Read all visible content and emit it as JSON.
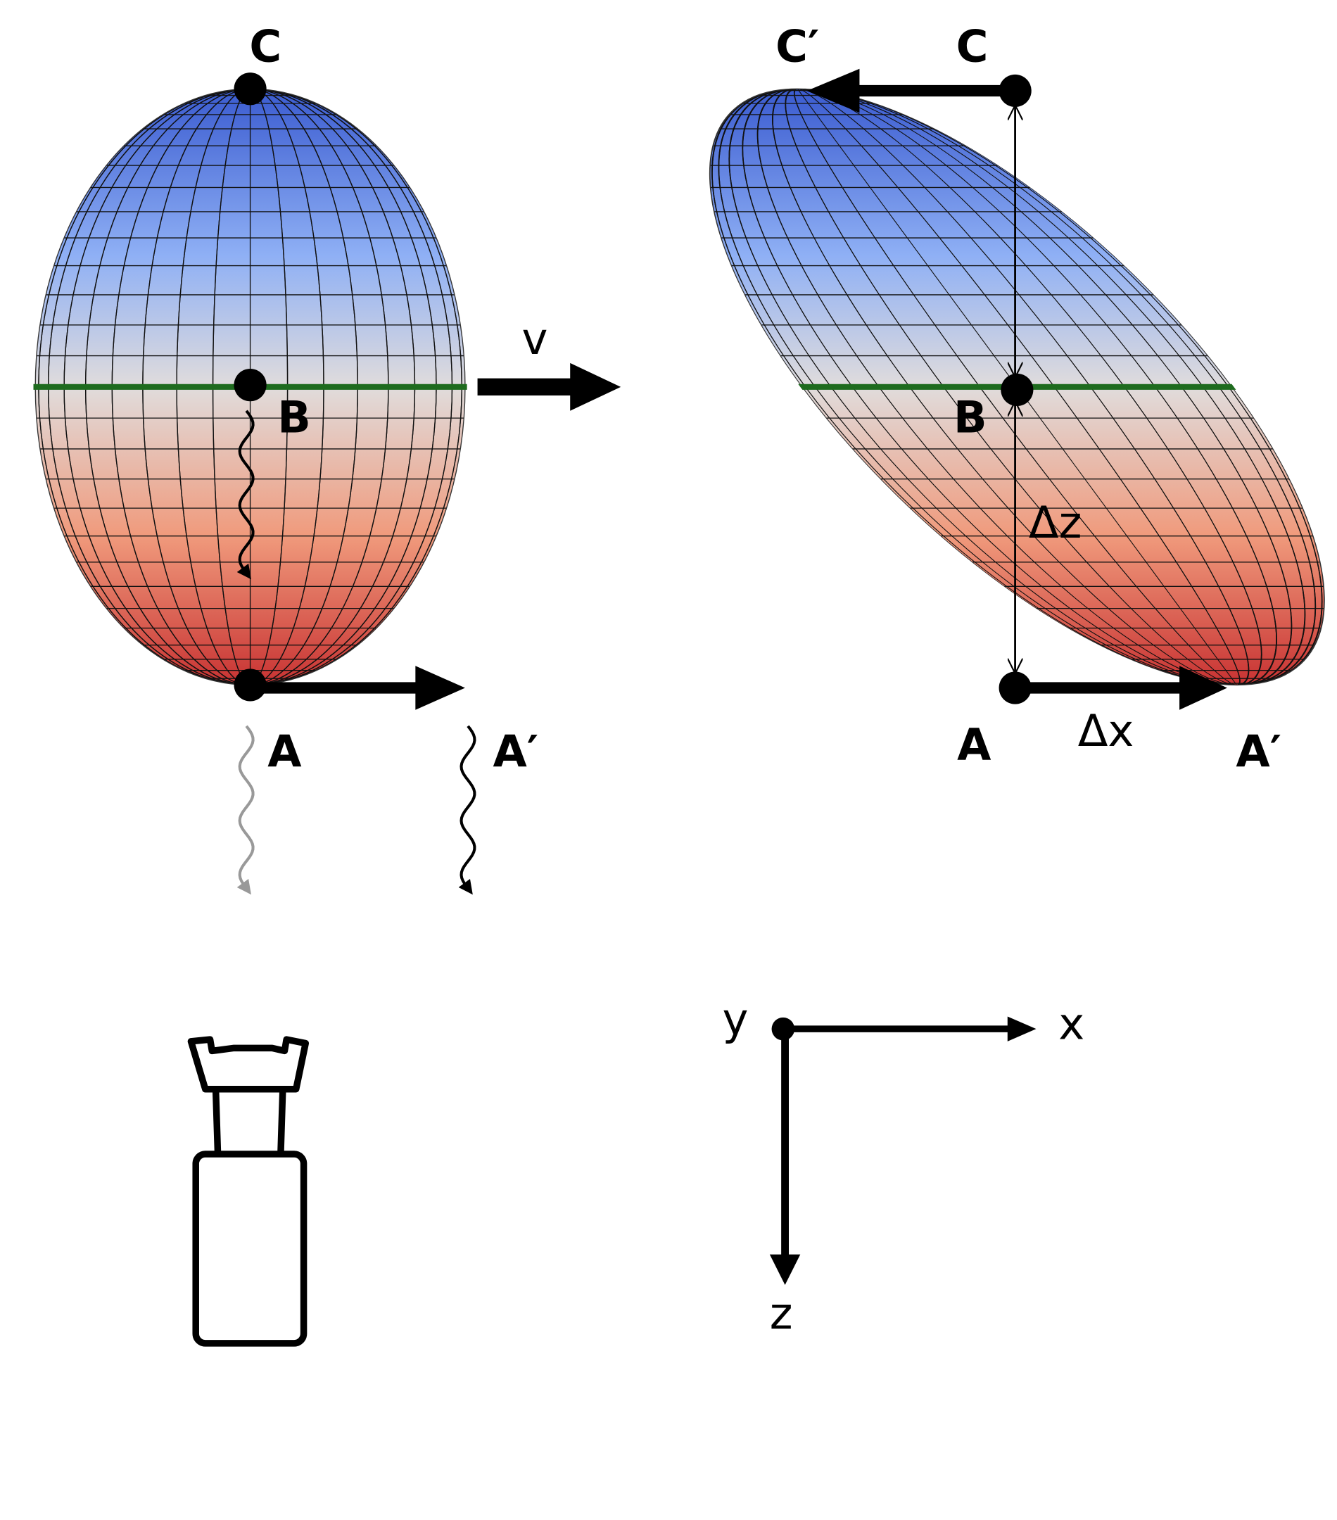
{
  "left": {
    "labels": {
      "c": "C",
      "b": "B",
      "a": "A",
      "a_prime": "A′",
      "v": "v"
    }
  },
  "right": {
    "labels": {
      "c_prime": "C′",
      "c": "C",
      "b": "B",
      "dz": "Δz",
      "a": "A",
      "dx": "Δx",
      "a_prime": "A′"
    }
  },
  "axes": {
    "labels": {
      "y": "y",
      "x": "x",
      "z": "z"
    }
  }
}
